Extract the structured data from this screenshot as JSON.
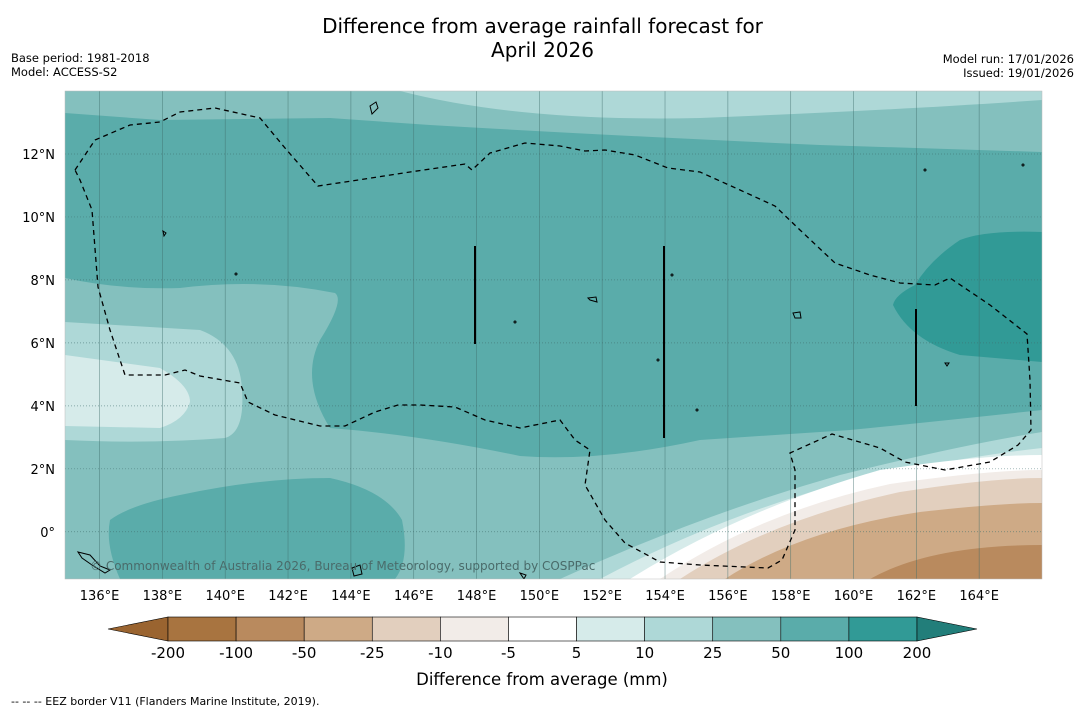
{
  "title": {
    "line1": "Difference from average rainfall forecast for",
    "line2": "April 2026"
  },
  "meta": {
    "base_period": "Base period: 1981-2018",
    "model": "Model: ACCESS-S2",
    "model_run": "Model run: 17/01/2026",
    "issued": "Issued: 19/01/2026"
  },
  "map": {
    "copyright": "© Commonwealth of Australia 2026, Bureau of Meteorology, supported by COSPPac",
    "lon_labels": [
      "136°E",
      "138°E",
      "140°E",
      "142°E",
      "144°E",
      "146°E",
      "148°E",
      "150°E",
      "152°E",
      "154°E",
      "156°E",
      "158°E",
      "160°E",
      "162°E",
      "164°E"
    ],
    "lat_labels": [
      "12°N",
      "10°N",
      "8°N",
      "6°N",
      "4°N",
      "2°N",
      "0°"
    ],
    "longitudes": [
      136,
      138,
      140,
      142,
      144,
      146,
      148,
      150,
      152,
      154,
      156,
      158,
      160,
      162,
      164
    ],
    "latitudes": [
      12,
      10,
      8,
      6,
      4,
      2,
      0
    ],
    "lon_range": [
      134.9,
      166.0
    ],
    "lat_range": [
      -1.5,
      14.0
    ]
  },
  "colorbar": {
    "title": "Difference from average (mm)",
    "tick_labels": [
      "-200",
      "-100",
      "-50",
      "-25",
      "-10",
      "-5",
      "5",
      "10",
      "25",
      "50",
      "100",
      "200"
    ],
    "colors": [
      "#a87440",
      "#b98a5e",
      "#ceaa86",
      "#e2cfbe",
      "#f2ece8",
      "#ffffff",
      "#d6ebea",
      "#aed8d7",
      "#84c0be",
      "#5aacaa",
      "#319a96"
    ],
    "under_color": "#9a6430",
    "over_color": "#227e7a"
  },
  "legend_note": "-- -- -- EEZ border V11 (Flanders Marine Institute, 2019)."
}
